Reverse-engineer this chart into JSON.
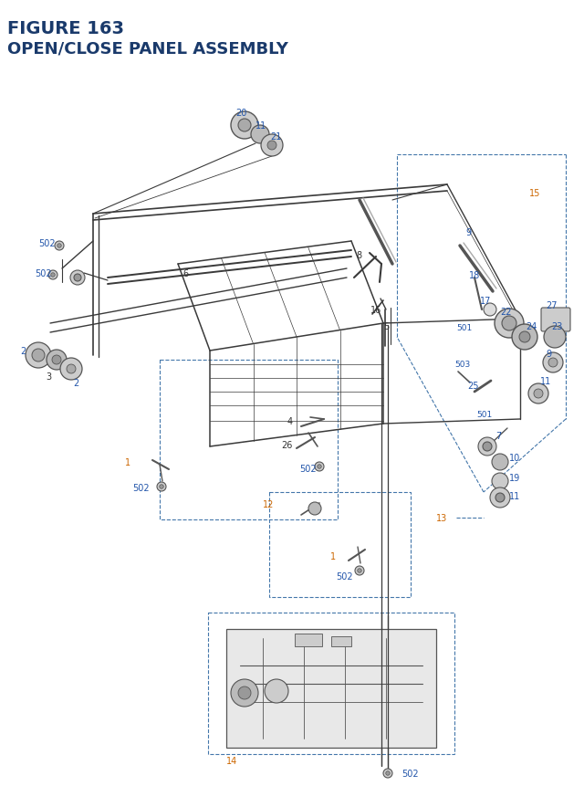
{
  "title_line1": "FIGURE 163",
  "title_line2": "OPEN/CLOSE PANEL ASSEMBLY",
  "title_color": "#1a3a6b",
  "bg_color": "#ffffff",
  "fig_w": 640,
  "fig_h": 862,
  "orange": "#cc6600",
  "blue": "#2255aa",
  "black": "#333333",
  "gray": "#555555",
  "dash_color": "#4477aa"
}
